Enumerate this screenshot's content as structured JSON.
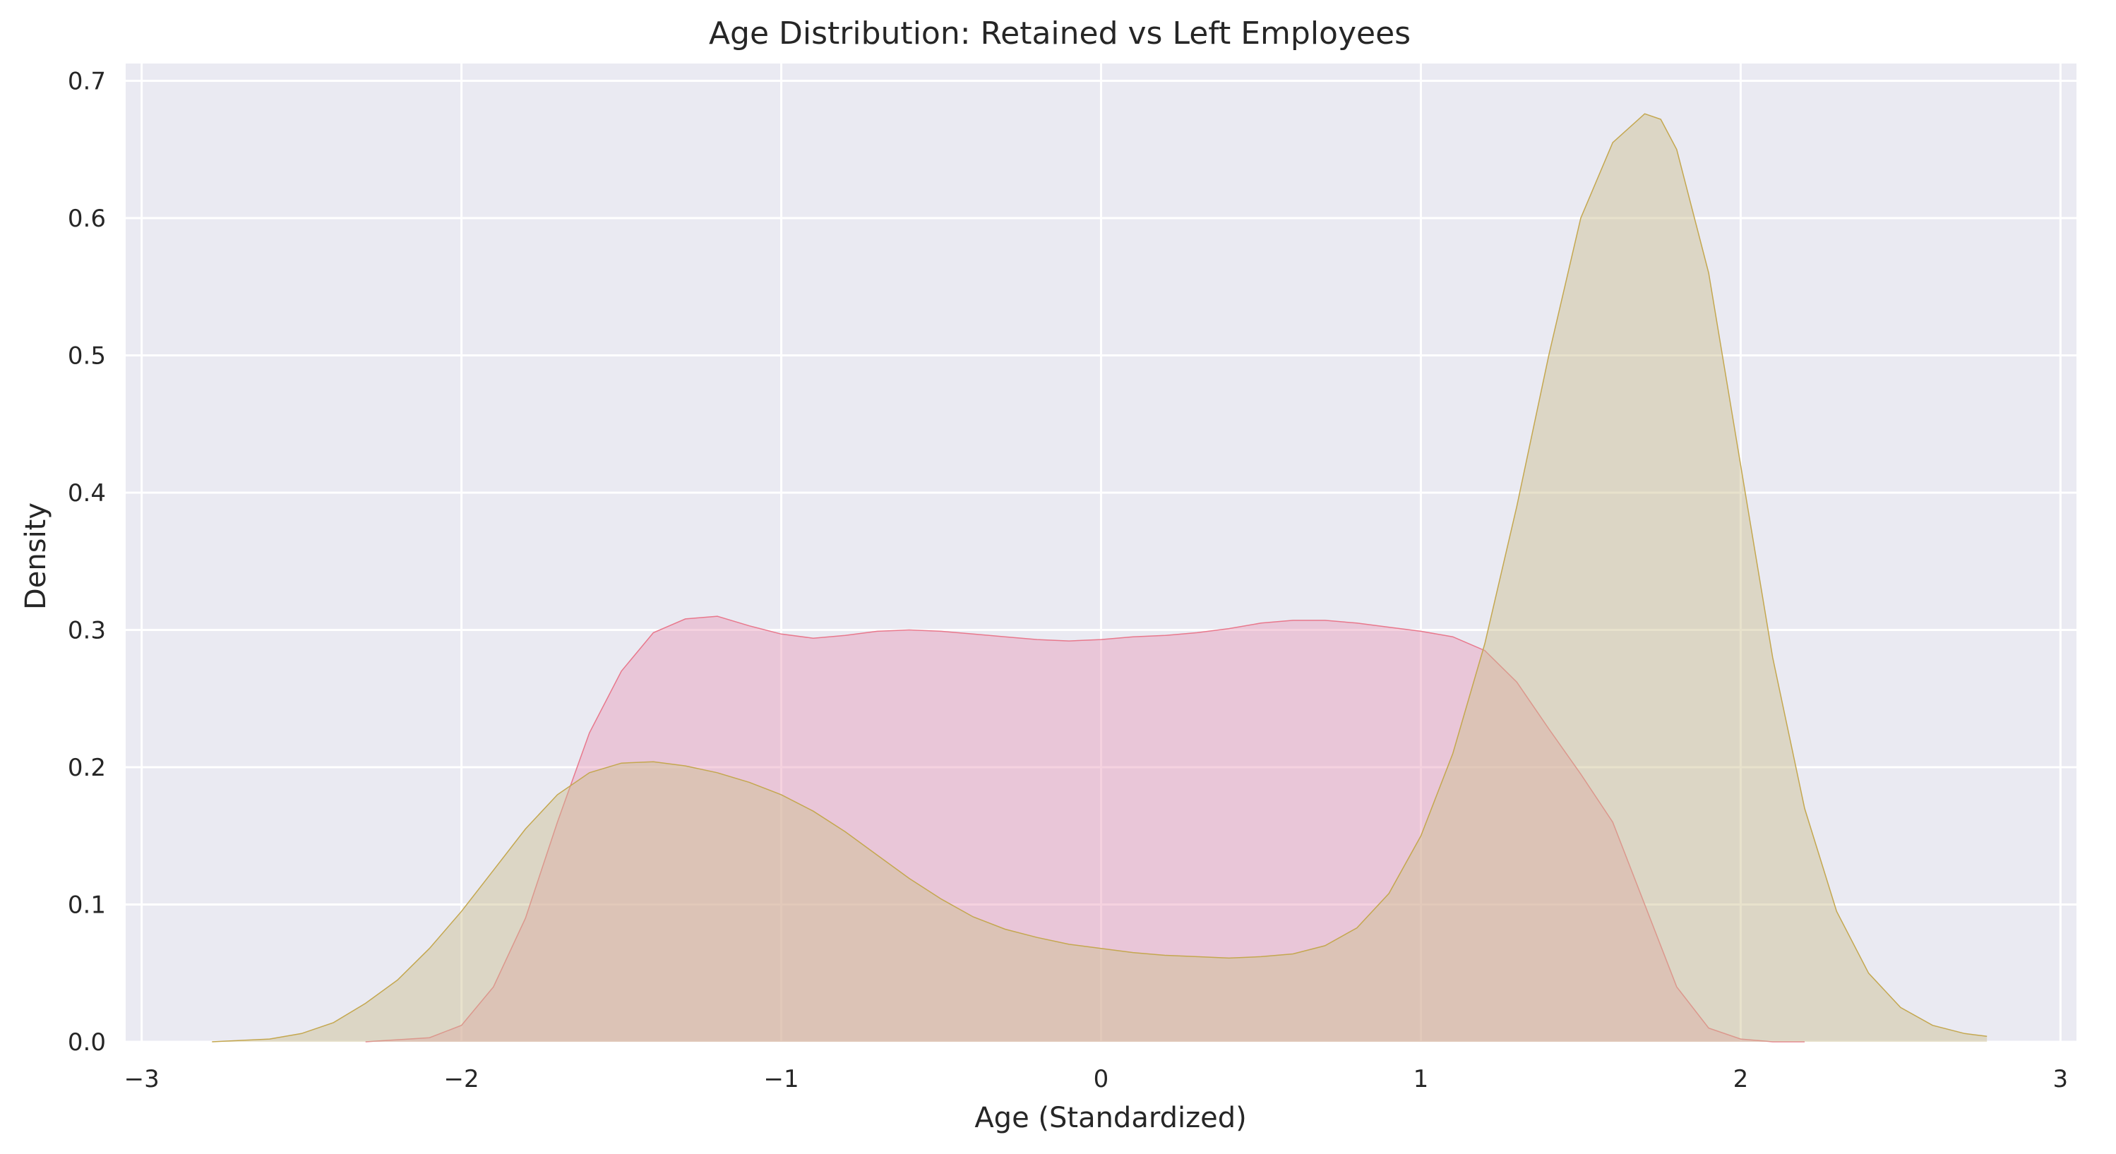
{
  "chart_data": {
    "type": "area",
    "title": "Age Distribution: Retained vs Left Employees",
    "xlabel": "Age (Standardized)",
    "ylabel": "Density",
    "xlim": [
      -3.05,
      3.05
    ],
    "ylim": [
      0,
      0.7126
    ],
    "grid": true,
    "legend": "none",
    "x_ticks": [
      -3,
      -2,
      -1,
      0,
      1,
      2,
      3
    ],
    "x_tick_labels": [
      "−3",
      "−2",
      "−1",
      "0",
      "1",
      "2",
      "3"
    ],
    "y_ticks": [
      0.0,
      0.1,
      0.2,
      0.3,
      0.4,
      0.5,
      0.6,
      0.7
    ],
    "y_tick_labels": [
      "0.0",
      "0.1",
      "0.2",
      "0.3",
      "0.4",
      "0.5",
      "0.6",
      "0.7"
    ],
    "colors": {
      "background": "#eaeaf2",
      "grid": "#ffffff",
      "series_0_fill": "#e89bb8",
      "series_0_line": "#e8788c",
      "series_1_fill": "#cbbf8f",
      "series_1_line": "#c4a74f"
    },
    "series": [
      {
        "x": [
          -2.3,
          -2.1,
          -2.0,
          -1.9,
          -1.8,
          -1.7,
          -1.6,
          -1.5,
          -1.4,
          -1.3,
          -1.2,
          -1.1,
          -1.0,
          -0.9,
          -0.8,
          -0.7,
          -0.6,
          -0.5,
          -0.4,
          -0.3,
          -0.2,
          -0.1,
          0.0,
          0.1,
          0.2,
          0.3,
          0.4,
          0.5,
          0.6,
          0.7,
          0.8,
          0.9,
          1.0,
          1.1,
          1.2,
          1.3,
          1.4,
          1.5,
          1.6,
          1.7,
          1.8,
          1.9,
          2.0,
          2.1,
          2.2
        ],
        "y": [
          0.0,
          0.003,
          0.012,
          0.04,
          0.09,
          0.16,
          0.225,
          0.27,
          0.298,
          0.308,
          0.31,
          0.303,
          0.297,
          0.294,
          0.296,
          0.299,
          0.3,
          0.299,
          0.297,
          0.295,
          0.293,
          0.292,
          0.293,
          0.295,
          0.296,
          0.298,
          0.301,
          0.305,
          0.307,
          0.307,
          0.305,
          0.302,
          0.299,
          0.295,
          0.285,
          0.262,
          0.228,
          0.195,
          0.16,
          0.1,
          0.04,
          0.01,
          0.002,
          0.0,
          0.0
        ]
      },
      {
        "x": [
          -2.78,
          -2.6,
          -2.5,
          -2.4,
          -2.3,
          -2.2,
          -2.1,
          -2.0,
          -1.9,
          -1.8,
          -1.7,
          -1.6,
          -1.5,
          -1.4,
          -1.3,
          -1.2,
          -1.1,
          -1.0,
          -0.9,
          -0.8,
          -0.7,
          -0.6,
          -0.5,
          -0.4,
          -0.3,
          -0.2,
          -0.1,
          0.0,
          0.1,
          0.2,
          0.3,
          0.4,
          0.5,
          0.6,
          0.7,
          0.8,
          0.9,
          1.0,
          1.1,
          1.2,
          1.3,
          1.4,
          1.5,
          1.6,
          1.7,
          1.75,
          1.8,
          1.9,
          2.0,
          2.1,
          2.2,
          2.3,
          2.4,
          2.5,
          2.6,
          2.7,
          2.77
        ],
        "y": [
          0.0,
          0.002,
          0.006,
          0.014,
          0.028,
          0.045,
          0.068,
          0.095,
          0.125,
          0.155,
          0.18,
          0.196,
          0.203,
          0.204,
          0.201,
          0.196,
          0.189,
          0.18,
          0.168,
          0.153,
          0.136,
          0.119,
          0.104,
          0.091,
          0.082,
          0.076,
          0.071,
          0.068,
          0.065,
          0.063,
          0.062,
          0.061,
          0.062,
          0.064,
          0.07,
          0.083,
          0.108,
          0.15,
          0.21,
          0.29,
          0.39,
          0.5,
          0.6,
          0.655,
          0.676,
          0.672,
          0.65,
          0.56,
          0.42,
          0.28,
          0.17,
          0.095,
          0.05,
          0.025,
          0.012,
          0.006,
          0.004
        ]
      }
    ]
  }
}
